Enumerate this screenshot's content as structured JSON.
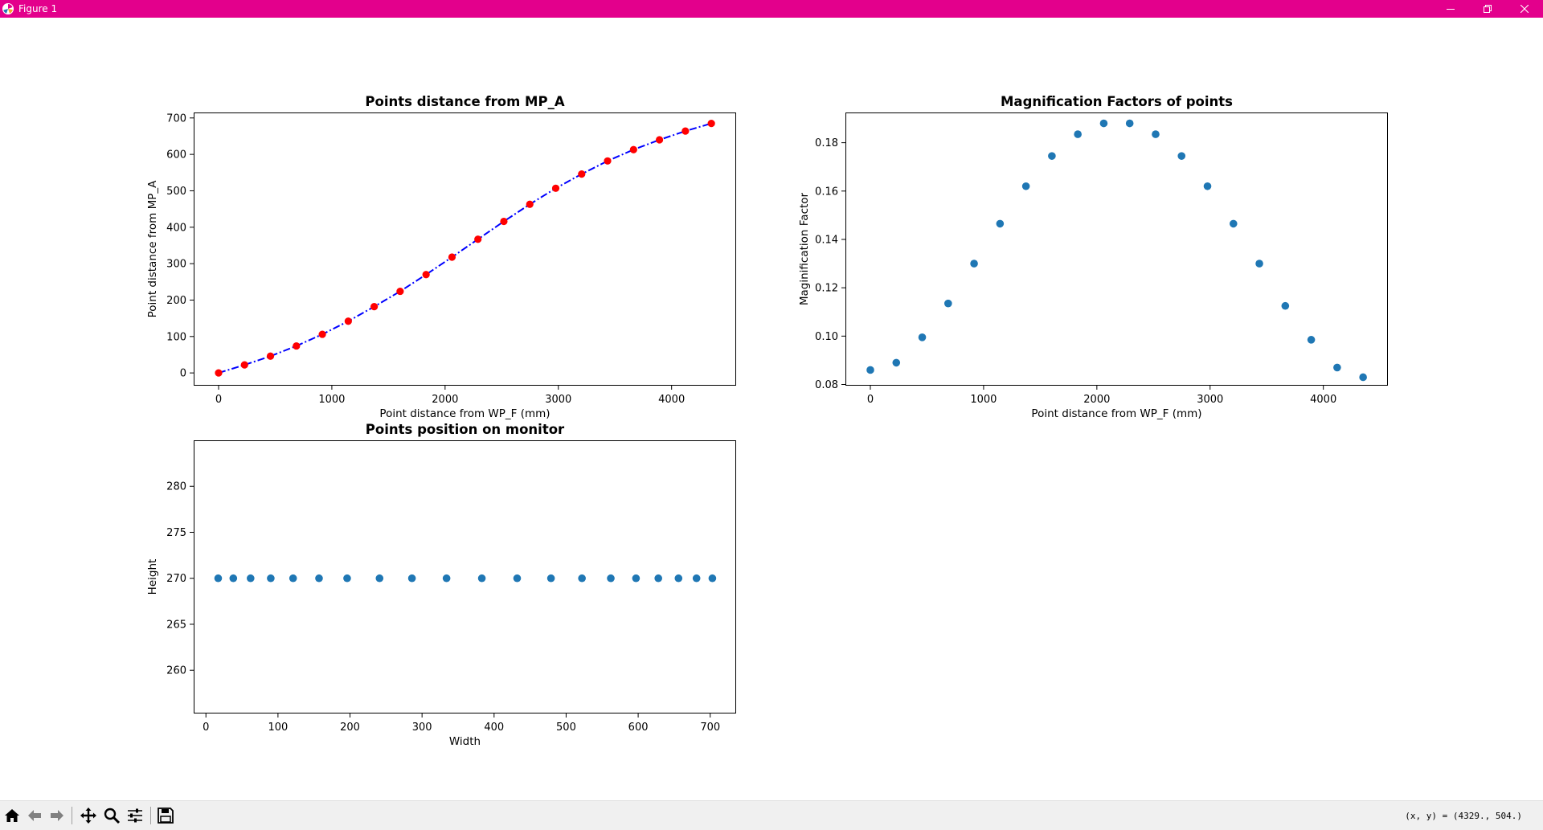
{
  "window": {
    "title": "Figure 1",
    "titlebar_color": "#e3008c"
  },
  "icons": {
    "app": "matplotlib-icon",
    "minimize": "minimize-icon",
    "restore": "restore-icon",
    "close": "close-icon"
  },
  "toolbar": {
    "items": [
      "home-icon",
      "back-arrow-icon",
      "forward-arrow-icon",
      "pan-icon",
      "zoom-icon",
      "configure-subplots-icon",
      "save-icon"
    ],
    "coords_text": "(x, y) = (4329., 504.)"
  },
  "chart_data": [
    {
      "type": "line",
      "title": "Points distance from MP_A",
      "xlabel": "Point distance from WP_F (mm)",
      "ylabel": "Point distance from MP_A",
      "xlim": [
        -220,
        4570
      ],
      "ylim": [
        -35,
        715
      ],
      "xticks": [
        0,
        1000,
        2000,
        3000,
        4000
      ],
      "yticks": [
        0,
        100,
        200,
        300,
        400,
        500,
        600,
        700
      ],
      "line_color": "#0000ff",
      "line_style": "dash-dot",
      "marker_color": "#ff0000",
      "grid": false,
      "x": [
        0,
        229,
        458,
        687,
        916,
        1145,
        1374,
        1603,
        1832,
        2061,
        2290,
        2519,
        2748,
        2977,
        3206,
        3435,
        3664,
        3893,
        4122,
        4351
      ],
      "y": [
        0,
        22,
        46,
        74,
        106,
        142,
        182,
        224,
        270,
        318,
        367,
        416,
        463,
        507,
        546,
        582,
        613,
        640,
        664,
        685
      ]
    },
    {
      "type": "scatter",
      "title": "Magnification Factors of points",
      "xlabel": "Point distance from WP_F (mm)",
      "ylabel": "Maginification Factor",
      "xlim": [
        -220,
        4570
      ],
      "ylim": [
        0.0795,
        0.1925
      ],
      "xticks": [
        0,
        1000,
        2000,
        3000,
        4000
      ],
      "yticks": [
        0.08,
        0.1,
        0.12,
        0.14,
        0.16,
        0.18
      ],
      "point_color": "#1f77b4",
      "grid": false,
      "x": [
        0,
        229,
        458,
        687,
        916,
        1145,
        1374,
        1603,
        1832,
        2061,
        2290,
        2519,
        2748,
        2977,
        3206,
        3435,
        3664,
        3893,
        4122,
        4351
      ],
      "y": [
        0.086,
        0.089,
        0.0995,
        0.1135,
        0.13,
        0.1465,
        0.162,
        0.1745,
        0.1835,
        0.188,
        0.188,
        0.1835,
        0.1745,
        0.162,
        0.1465,
        0.13,
        0.1125,
        0.0985,
        0.087,
        0.083
      ]
    },
    {
      "type": "scatter",
      "title": "Points position on monitor",
      "xlabel": "Width",
      "ylabel": "Height",
      "xlim": [
        -17,
        736
      ],
      "ylim": [
        255.3,
        285.0
      ],
      "xticks": [
        0,
        100,
        200,
        300,
        400,
        500,
        600,
        700
      ],
      "yticks": [
        260,
        265,
        270,
        275,
        280
      ],
      "point_color": "#1f77b4",
      "grid": false,
      "x": [
        17,
        38,
        62,
        90,
        121,
        157,
        196,
        241,
        286,
        334,
        383,
        432,
        479,
        522,
        562,
        597,
        628,
        656,
        681,
        703
      ],
      "y": [
        270,
        270,
        270,
        270,
        270,
        270,
        270,
        270,
        270,
        270,
        270,
        270,
        270,
        270,
        270,
        270,
        270,
        270,
        270,
        270
      ]
    }
  ]
}
